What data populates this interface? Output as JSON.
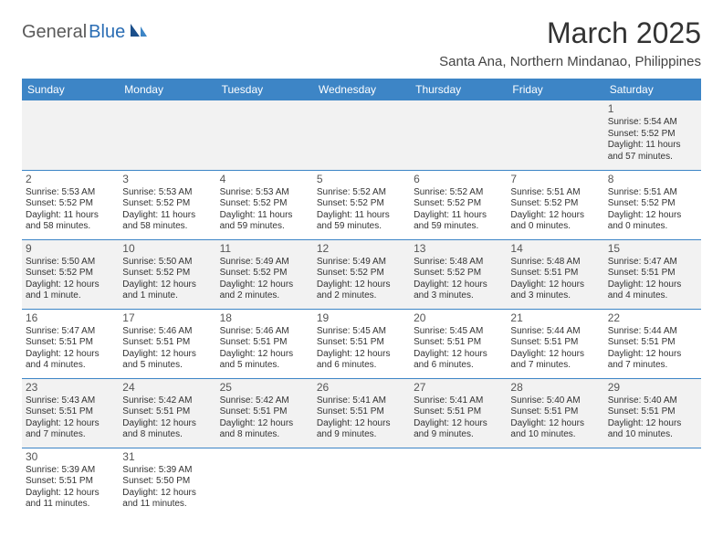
{
  "logo": {
    "gray": "General",
    "blue": "Blue"
  },
  "title": "March 2025",
  "location": "Santa Ana, Northern Mindanao, Philippines",
  "colors": {
    "header_bg": "#3d85c6",
    "header_fg": "#ffffff",
    "row_border": "#3d85c6",
    "alt_row_bg": "#f2f2f2",
    "page_bg": "#ffffff",
    "text": "#333333",
    "logo_gray": "#5a5a5a",
    "logo_blue": "#2a6db4"
  },
  "weekdays": [
    "Sunday",
    "Monday",
    "Tuesday",
    "Wednesday",
    "Thursday",
    "Friday",
    "Saturday"
  ],
  "weeks": [
    [
      null,
      null,
      null,
      null,
      null,
      null,
      {
        "d": "1",
        "sr": "Sunrise: 5:54 AM",
        "ss": "Sunset: 5:52 PM",
        "dl1": "Daylight: 11 hours",
        "dl2": "and 57 minutes."
      }
    ],
    [
      {
        "d": "2",
        "sr": "Sunrise: 5:53 AM",
        "ss": "Sunset: 5:52 PM",
        "dl1": "Daylight: 11 hours",
        "dl2": "and 58 minutes."
      },
      {
        "d": "3",
        "sr": "Sunrise: 5:53 AM",
        "ss": "Sunset: 5:52 PM",
        "dl1": "Daylight: 11 hours",
        "dl2": "and 58 minutes."
      },
      {
        "d": "4",
        "sr": "Sunrise: 5:53 AM",
        "ss": "Sunset: 5:52 PM",
        "dl1": "Daylight: 11 hours",
        "dl2": "and 59 minutes."
      },
      {
        "d": "5",
        "sr": "Sunrise: 5:52 AM",
        "ss": "Sunset: 5:52 PM",
        "dl1": "Daylight: 11 hours",
        "dl2": "and 59 minutes."
      },
      {
        "d": "6",
        "sr": "Sunrise: 5:52 AM",
        "ss": "Sunset: 5:52 PM",
        "dl1": "Daylight: 11 hours",
        "dl2": "and 59 minutes."
      },
      {
        "d": "7",
        "sr": "Sunrise: 5:51 AM",
        "ss": "Sunset: 5:52 PM",
        "dl1": "Daylight: 12 hours",
        "dl2": "and 0 minutes."
      },
      {
        "d": "8",
        "sr": "Sunrise: 5:51 AM",
        "ss": "Sunset: 5:52 PM",
        "dl1": "Daylight: 12 hours",
        "dl2": "and 0 minutes."
      }
    ],
    [
      {
        "d": "9",
        "sr": "Sunrise: 5:50 AM",
        "ss": "Sunset: 5:52 PM",
        "dl1": "Daylight: 12 hours",
        "dl2": "and 1 minute."
      },
      {
        "d": "10",
        "sr": "Sunrise: 5:50 AM",
        "ss": "Sunset: 5:52 PM",
        "dl1": "Daylight: 12 hours",
        "dl2": "and 1 minute."
      },
      {
        "d": "11",
        "sr": "Sunrise: 5:49 AM",
        "ss": "Sunset: 5:52 PM",
        "dl1": "Daylight: 12 hours",
        "dl2": "and 2 minutes."
      },
      {
        "d": "12",
        "sr": "Sunrise: 5:49 AM",
        "ss": "Sunset: 5:52 PM",
        "dl1": "Daylight: 12 hours",
        "dl2": "and 2 minutes."
      },
      {
        "d": "13",
        "sr": "Sunrise: 5:48 AM",
        "ss": "Sunset: 5:52 PM",
        "dl1": "Daylight: 12 hours",
        "dl2": "and 3 minutes."
      },
      {
        "d": "14",
        "sr": "Sunrise: 5:48 AM",
        "ss": "Sunset: 5:51 PM",
        "dl1": "Daylight: 12 hours",
        "dl2": "and 3 minutes."
      },
      {
        "d": "15",
        "sr": "Sunrise: 5:47 AM",
        "ss": "Sunset: 5:51 PM",
        "dl1": "Daylight: 12 hours",
        "dl2": "and 4 minutes."
      }
    ],
    [
      {
        "d": "16",
        "sr": "Sunrise: 5:47 AM",
        "ss": "Sunset: 5:51 PM",
        "dl1": "Daylight: 12 hours",
        "dl2": "and 4 minutes."
      },
      {
        "d": "17",
        "sr": "Sunrise: 5:46 AM",
        "ss": "Sunset: 5:51 PM",
        "dl1": "Daylight: 12 hours",
        "dl2": "and 5 minutes."
      },
      {
        "d": "18",
        "sr": "Sunrise: 5:46 AM",
        "ss": "Sunset: 5:51 PM",
        "dl1": "Daylight: 12 hours",
        "dl2": "and 5 minutes."
      },
      {
        "d": "19",
        "sr": "Sunrise: 5:45 AM",
        "ss": "Sunset: 5:51 PM",
        "dl1": "Daylight: 12 hours",
        "dl2": "and 6 minutes."
      },
      {
        "d": "20",
        "sr": "Sunrise: 5:45 AM",
        "ss": "Sunset: 5:51 PM",
        "dl1": "Daylight: 12 hours",
        "dl2": "and 6 minutes."
      },
      {
        "d": "21",
        "sr": "Sunrise: 5:44 AM",
        "ss": "Sunset: 5:51 PM",
        "dl1": "Daylight: 12 hours",
        "dl2": "and 7 minutes."
      },
      {
        "d": "22",
        "sr": "Sunrise: 5:44 AM",
        "ss": "Sunset: 5:51 PM",
        "dl1": "Daylight: 12 hours",
        "dl2": "and 7 minutes."
      }
    ],
    [
      {
        "d": "23",
        "sr": "Sunrise: 5:43 AM",
        "ss": "Sunset: 5:51 PM",
        "dl1": "Daylight: 12 hours",
        "dl2": "and 7 minutes."
      },
      {
        "d": "24",
        "sr": "Sunrise: 5:42 AM",
        "ss": "Sunset: 5:51 PM",
        "dl1": "Daylight: 12 hours",
        "dl2": "and 8 minutes."
      },
      {
        "d": "25",
        "sr": "Sunrise: 5:42 AM",
        "ss": "Sunset: 5:51 PM",
        "dl1": "Daylight: 12 hours",
        "dl2": "and 8 minutes."
      },
      {
        "d": "26",
        "sr": "Sunrise: 5:41 AM",
        "ss": "Sunset: 5:51 PM",
        "dl1": "Daylight: 12 hours",
        "dl2": "and 9 minutes."
      },
      {
        "d": "27",
        "sr": "Sunrise: 5:41 AM",
        "ss": "Sunset: 5:51 PM",
        "dl1": "Daylight: 12 hours",
        "dl2": "and 9 minutes."
      },
      {
        "d": "28",
        "sr": "Sunrise: 5:40 AM",
        "ss": "Sunset: 5:51 PM",
        "dl1": "Daylight: 12 hours",
        "dl2": "and 10 minutes."
      },
      {
        "d": "29",
        "sr": "Sunrise: 5:40 AM",
        "ss": "Sunset: 5:51 PM",
        "dl1": "Daylight: 12 hours",
        "dl2": "and 10 minutes."
      }
    ],
    [
      {
        "d": "30",
        "sr": "Sunrise: 5:39 AM",
        "ss": "Sunset: 5:51 PM",
        "dl1": "Daylight: 12 hours",
        "dl2": "and 11 minutes."
      },
      {
        "d": "31",
        "sr": "Sunrise: 5:39 AM",
        "ss": "Sunset: 5:50 PM",
        "dl1": "Daylight: 12 hours",
        "dl2": "and 11 minutes."
      },
      null,
      null,
      null,
      null,
      null
    ]
  ]
}
